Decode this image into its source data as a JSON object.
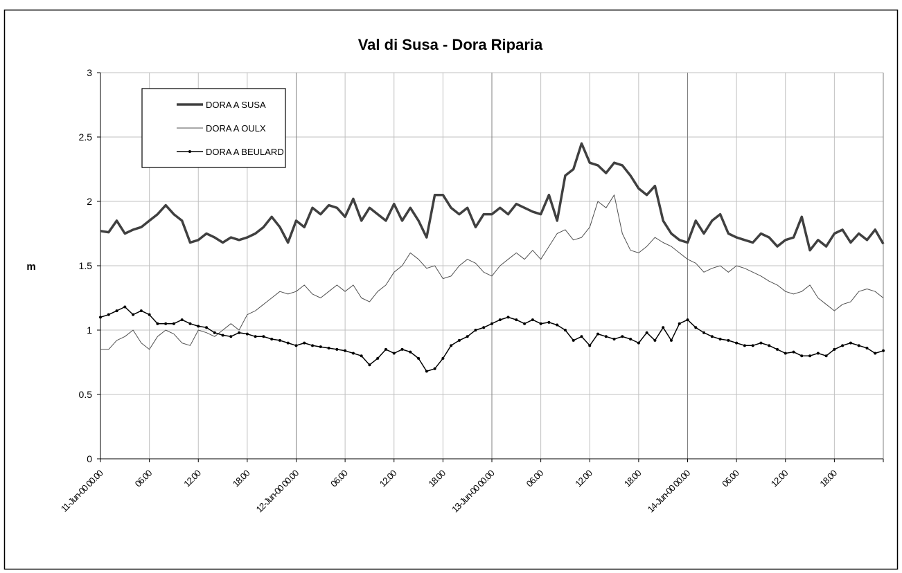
{
  "chart_data": {
    "type": "line",
    "title": "Val di Susa - Dora Riparia",
    "y_label": "m",
    "x": [
      0,
      1,
      2,
      3,
      4,
      5,
      6,
      7,
      8,
      9,
      10,
      11,
      12,
      13,
      14,
      15,
      16,
      17,
      18,
      19,
      20,
      21,
      22,
      23,
      24,
      25,
      26,
      27,
      28,
      29,
      30,
      31,
      32,
      33,
      34,
      35,
      36,
      37,
      38,
      39,
      40,
      41,
      42,
      43,
      44,
      45,
      46,
      47,
      48,
      49,
      50,
      51,
      52,
      53,
      54,
      55,
      56,
      57,
      58,
      59,
      60,
      61,
      62,
      63,
      64,
      65,
      66,
      67,
      68,
      69,
      70,
      71,
      72,
      73,
      74,
      75,
      76,
      77,
      78,
      79,
      80,
      81,
      82,
      83,
      84,
      85,
      86,
      87,
      88,
      89,
      90,
      91,
      92,
      93,
      94,
      95,
      96
    ],
    "series": [
      {
        "name": "DORA A SUSA",
        "color": "#404040",
        "line_width": 3.5,
        "marker": false,
        "values": [
          1.77,
          1.76,
          1.85,
          1.75,
          1.78,
          1.8,
          1.85,
          1.9,
          1.97,
          1.9,
          1.85,
          1.68,
          1.7,
          1.75,
          1.72,
          1.68,
          1.72,
          1.7,
          1.72,
          1.75,
          1.8,
          1.88,
          1.8,
          1.68,
          1.85,
          1.8,
          1.95,
          1.9,
          1.97,
          1.95,
          1.88,
          2.02,
          1.85,
          1.95,
          1.9,
          1.85,
          1.98,
          1.85,
          1.95,
          1.85,
          1.72,
          2.05,
          2.05,
          1.95,
          1.9,
          1.95,
          1.8,
          1.9,
          1.9,
          1.95,
          1.9,
          1.98,
          1.95,
          1.92,
          1.9,
          2.05,
          1.85,
          2.2,
          2.25,
          2.45,
          2.3,
          2.28,
          2.22,
          2.3,
          2.28,
          2.2,
          2.1,
          2.05,
          2.12,
          1.85,
          1.75,
          1.7,
          1.68,
          1.85,
          1.75,
          1.85,
          1.9,
          1.75,
          1.72,
          1.7,
          1.68,
          1.75,
          1.72,
          1.65,
          1.7,
          1.72,
          1.88,
          1.62,
          1.7,
          1.65,
          1.75,
          1.78,
          1.68,
          1.75,
          1.7,
          1.78,
          1.67
        ]
      },
      {
        "name": "DORA A OULX",
        "color": "#505050",
        "line_width": 1,
        "marker": false,
        "values": [
          0.85,
          0.85,
          0.92,
          0.95,
          1.0,
          0.9,
          0.85,
          0.95,
          1.0,
          0.97,
          0.9,
          0.88,
          1.0,
          0.98,
          0.95,
          1.0,
          1.05,
          1.0,
          1.12,
          1.15,
          1.2,
          1.25,
          1.3,
          1.28,
          1.3,
          1.35,
          1.28,
          1.25,
          1.3,
          1.35,
          1.3,
          1.35,
          1.25,
          1.22,
          1.3,
          1.35,
          1.45,
          1.5,
          1.6,
          1.55,
          1.48,
          1.5,
          1.4,
          1.42,
          1.5,
          1.55,
          1.52,
          1.45,
          1.42,
          1.5,
          1.55,
          1.6,
          1.55,
          1.62,
          1.55,
          1.65,
          1.75,
          1.78,
          1.7,
          1.72,
          1.8,
          2.0,
          1.95,
          2.05,
          1.75,
          1.62,
          1.6,
          1.65,
          1.72,
          1.68,
          1.65,
          1.6,
          1.55,
          1.52,
          1.45,
          1.48,
          1.5,
          1.45,
          1.5,
          1.48,
          1.45,
          1.42,
          1.38,
          1.35,
          1.3,
          1.28,
          1.3,
          1.35,
          1.25,
          1.2,
          1.15,
          1.2,
          1.22,
          1.3,
          1.32,
          1.3,
          1.25
        ]
      },
      {
        "name": "DORA A BEULARD",
        "color": "#000000",
        "line_width": 1.5,
        "marker": true,
        "values": [
          1.1,
          1.12,
          1.15,
          1.18,
          1.12,
          1.15,
          1.12,
          1.05,
          1.05,
          1.05,
          1.08,
          1.05,
          1.03,
          1.02,
          0.98,
          0.96,
          0.95,
          0.98,
          0.97,
          0.95,
          0.95,
          0.93,
          0.92,
          0.9,
          0.88,
          0.9,
          0.88,
          0.87,
          0.86,
          0.85,
          0.84,
          0.82,
          0.8,
          0.73,
          0.78,
          0.85,
          0.82,
          0.85,
          0.83,
          0.78,
          0.68,
          0.7,
          0.78,
          0.88,
          0.92,
          0.95,
          1.0,
          1.02,
          1.05,
          1.08,
          1.1,
          1.08,
          1.05,
          1.08,
          1.05,
          1.06,
          1.04,
          1.0,
          0.92,
          0.95,
          0.88,
          0.97,
          0.95,
          0.93,
          0.95,
          0.93,
          0.9,
          0.98,
          0.92,
          1.02,
          0.92,
          1.05,
          1.08,
          1.02,
          0.98,
          0.95,
          0.93,
          0.92,
          0.9,
          0.88,
          0.88,
          0.9,
          0.88,
          0.85,
          0.82,
          0.83,
          0.8,
          0.8,
          0.82,
          0.8,
          0.85,
          0.88,
          0.9,
          0.88,
          0.86,
          0.82,
          0.84
        ]
      }
    ],
    "xlim": [
      0,
      96
    ],
    "xticks": [
      {
        "value": 0,
        "label": "11-Jun-00 00.00"
      },
      {
        "value": 6,
        "label": "06.00"
      },
      {
        "value": 12,
        "label": "12.00"
      },
      {
        "value": 18,
        "label": "18.00"
      },
      {
        "value": 24,
        "label": "12-Jun-00 00.00"
      },
      {
        "value": 30,
        "label": "06.00"
      },
      {
        "value": 36,
        "label": "12.00"
      },
      {
        "value": 42,
        "label": "18.00"
      },
      {
        "value": 48,
        "label": "13-Jun-00 00.00"
      },
      {
        "value": 54,
        "label": "06.00"
      },
      {
        "value": 60,
        "label": "12.00"
      },
      {
        "value": 66,
        "label": "18.00"
      },
      {
        "value": 72,
        "label": "14-Jun-00 00.00"
      },
      {
        "value": 78,
        "label": "06.00"
      },
      {
        "value": 84,
        "label": "12.00"
      },
      {
        "value": 90,
        "label": "18.00"
      },
      96
    ],
    "ylim": [
      0,
      3
    ],
    "yticks": [
      0,
      0.5,
      1,
      1.5,
      2,
      2.5,
      3
    ],
    "grid": true,
    "legend": "upper-left"
  }
}
